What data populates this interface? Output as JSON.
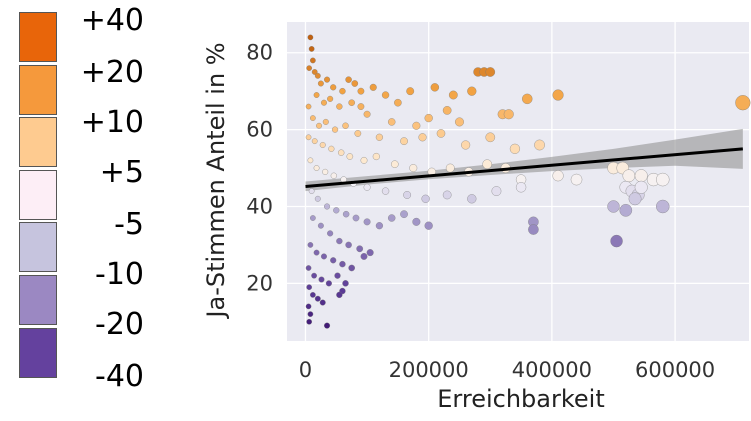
{
  "legend": {
    "items": [
      {
        "label": "+40",
        "color": "#e8650a"
      },
      {
        "label": "+20",
        "color": "#f5993c"
      },
      {
        "label": "+10",
        "color": "#fecb90"
      },
      {
        "label": "+5",
        "color": "#fdeef6"
      },
      {
        "label": "-5",
        "color": "#c6c4de"
      },
      {
        "label": "-10",
        "color": "#9b88c2"
      },
      {
        "label": "-20",
        "color": "#64419e"
      },
      {
        "label": "-40",
        "color": ""
      }
    ]
  },
  "chart_data": {
    "type": "scatter",
    "xlabel": "Erreichbarkeit",
    "ylabel": "Ja-Stimmen Anteil in %",
    "xlim": [
      -30000,
      720000
    ],
    "ylim": [
      5,
      88
    ],
    "xticks": [
      0,
      200000,
      400000,
      600000
    ],
    "xtick_labels": [
      "0",
      "200000",
      "400000",
      "600000"
    ],
    "yticks": [
      20,
      40,
      60,
      80
    ],
    "ytick_labels": [
      "20",
      "40",
      "60",
      "80"
    ],
    "grid": true,
    "background": "#eaeaf2",
    "points": [
      [
        8000,
        84
      ],
      [
        10000,
        81
      ],
      [
        12000,
        78
      ],
      [
        6000,
        76
      ],
      [
        15000,
        75
      ],
      [
        20000,
        74
      ],
      [
        25000,
        72
      ],
      [
        35000,
        73
      ],
      [
        45000,
        71
      ],
      [
        60000,
        70
      ],
      [
        70000,
        73
      ],
      [
        80000,
        72
      ],
      [
        90000,
        70
      ],
      [
        110000,
        71
      ],
      [
        130000,
        69
      ],
      [
        150000,
        67
      ],
      [
        170000,
        70
      ],
      [
        210000,
        71
      ],
      [
        240000,
        69
      ],
      [
        270000,
        70
      ],
      [
        280000,
        75
      ],
      [
        290000,
        75
      ],
      [
        300000,
        75
      ],
      [
        320000,
        64
      ],
      [
        330000,
        64
      ],
      [
        360000,
        68
      ],
      [
        410000,
        69
      ],
      [
        710000,
        67
      ],
      [
        230000,
        65
      ],
      [
        250000,
        62
      ],
      [
        200000,
        63
      ],
      [
        180000,
        61
      ],
      [
        140000,
        62
      ],
      [
        100000,
        64
      ],
      [
        90000,
        66
      ],
      [
        75000,
        67
      ],
      [
        55000,
        66
      ],
      [
        40000,
        68
      ],
      [
        30000,
        67
      ],
      [
        18000,
        69
      ],
      [
        5000,
        66
      ],
      [
        12000,
        63
      ],
      [
        22000,
        61
      ],
      [
        33000,
        62
      ],
      [
        48000,
        60
      ],
      [
        65000,
        61
      ],
      [
        85000,
        59
      ],
      [
        120000,
        58
      ],
      [
        160000,
        57
      ],
      [
        190000,
        58
      ],
      [
        220000,
        59
      ],
      [
        260000,
        56
      ],
      [
        300000,
        58
      ],
      [
        340000,
        55
      ],
      [
        380000,
        56
      ],
      [
        5000,
        58
      ],
      [
        15000,
        57
      ],
      [
        28000,
        56
      ],
      [
        42000,
        55
      ],
      [
        58000,
        54
      ],
      [
        72000,
        53
      ],
      [
        95000,
        52
      ],
      [
        115000,
        53
      ],
      [
        145000,
        51
      ],
      [
        175000,
        50
      ],
      [
        205000,
        49
      ],
      [
        235000,
        50
      ],
      [
        265000,
        49
      ],
      [
        295000,
        51
      ],
      [
        325000,
        50
      ],
      [
        350000,
        47
      ],
      [
        410000,
        48
      ],
      [
        440000,
        47
      ],
      [
        500000,
        50
      ],
      [
        515000,
        50
      ],
      [
        525000,
        48
      ],
      [
        545000,
        48
      ],
      [
        565000,
        47
      ],
      [
        580000,
        47
      ],
      [
        520000,
        45
      ],
      [
        530000,
        44
      ],
      [
        540000,
        43
      ],
      [
        545000,
        45
      ],
      [
        535000,
        42
      ],
      [
        8000,
        52
      ],
      [
        18000,
        50
      ],
      [
        32000,
        49
      ],
      [
        46000,
        48
      ],
      [
        62000,
        47
      ],
      [
        78000,
        46
      ],
      [
        100000,
        45
      ],
      [
        130000,
        44
      ],
      [
        165000,
        43
      ],
      [
        195000,
        42
      ],
      [
        230000,
        43
      ],
      [
        270000,
        42
      ],
      [
        310000,
        44
      ],
      [
        350000,
        45
      ],
      [
        370000,
        36
      ],
      [
        370000,
        34
      ],
      [
        500000,
        40
      ],
      [
        520000,
        39
      ],
      [
        580000,
        40
      ],
      [
        505000,
        31
      ],
      [
        10000,
        44
      ],
      [
        20000,
        42
      ],
      [
        35000,
        40
      ],
      [
        50000,
        39
      ],
      [
        66000,
        38
      ],
      [
        82000,
        37
      ],
      [
        100000,
        36
      ],
      [
        120000,
        35
      ],
      [
        140000,
        37
      ],
      [
        160000,
        38
      ],
      [
        180000,
        36
      ],
      [
        200000,
        35
      ],
      [
        12000,
        37
      ],
      [
        25000,
        35
      ],
      [
        40000,
        33
      ],
      [
        55000,
        31
      ],
      [
        70000,
        30
      ],
      [
        88000,
        29
      ],
      [
        105000,
        28
      ],
      [
        8000,
        30
      ],
      [
        18000,
        28
      ],
      [
        30000,
        27
      ],
      [
        45000,
        26
      ],
      [
        60000,
        25
      ],
      [
        75000,
        24
      ],
      [
        95000,
        27
      ],
      [
        5000,
        24
      ],
      [
        14000,
        22
      ],
      [
        26000,
        21
      ],
      [
        38000,
        20
      ],
      [
        52000,
        22
      ],
      [
        65000,
        20
      ],
      [
        6000,
        19
      ],
      [
        12000,
        17
      ],
      [
        20000,
        16
      ],
      [
        28000,
        15
      ],
      [
        60000,
        18
      ],
      [
        55000,
        17
      ],
      [
        5000,
        14
      ],
      [
        8000,
        12
      ],
      [
        6000,
        10
      ],
      [
        35000,
        9
      ]
    ],
    "trend_line": {
      "x": [
        0,
        710000
      ],
      "y": [
        45.2,
        55.0
      ]
    },
    "confidence_band": {
      "x": [
        0,
        100000,
        200000,
        300000,
        400000,
        500000,
        600000,
        710000
      ],
      "upper": [
        46.5,
        47.9,
        49.3,
        51.0,
        52.9,
        55.0,
        57.4,
        60.2
      ],
      "lower": [
        44.0,
        45.7,
        47.1,
        48.2,
        49.2,
        50.0,
        50.6,
        49.8
      ]
    }
  }
}
